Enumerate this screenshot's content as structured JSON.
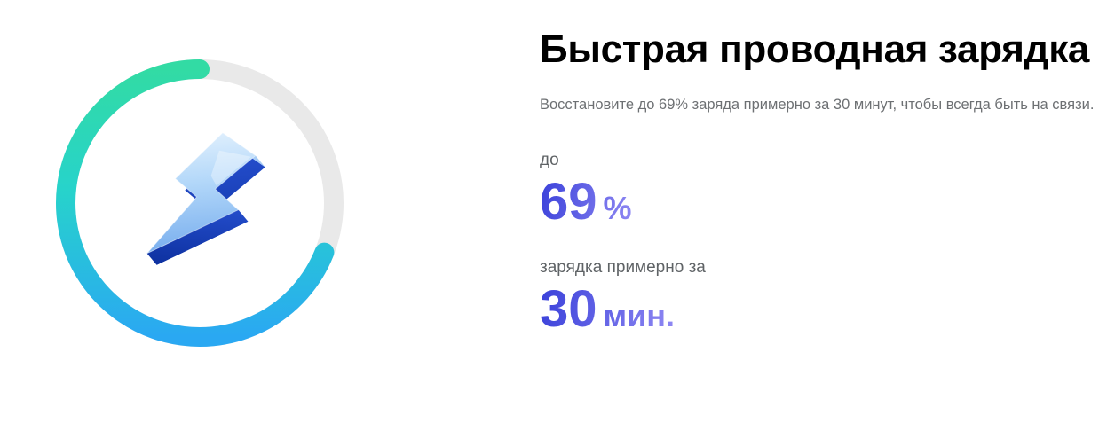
{
  "section": {
    "title": "Быстрая проводная зарядка",
    "description": "Восстановите до 69% заряда примерно за 30 минут, чтобы всегда быть на связи.",
    "ring": {
      "percent": 69,
      "track_color": "#e9e9e9",
      "gradient_stops": [
        "#32dba4",
        "#27d3cb",
        "#2aa8f2"
      ],
      "icon": "lightning-bolt-3d-icon"
    },
    "stats": [
      {
        "label": "до",
        "value": "69",
        "unit": "%"
      },
      {
        "label": "зарядка примерно за",
        "value": "30",
        "unit": "мин."
      }
    ],
    "accent_gradient": [
      "#3a41da",
      "#9089f3"
    ]
  }
}
